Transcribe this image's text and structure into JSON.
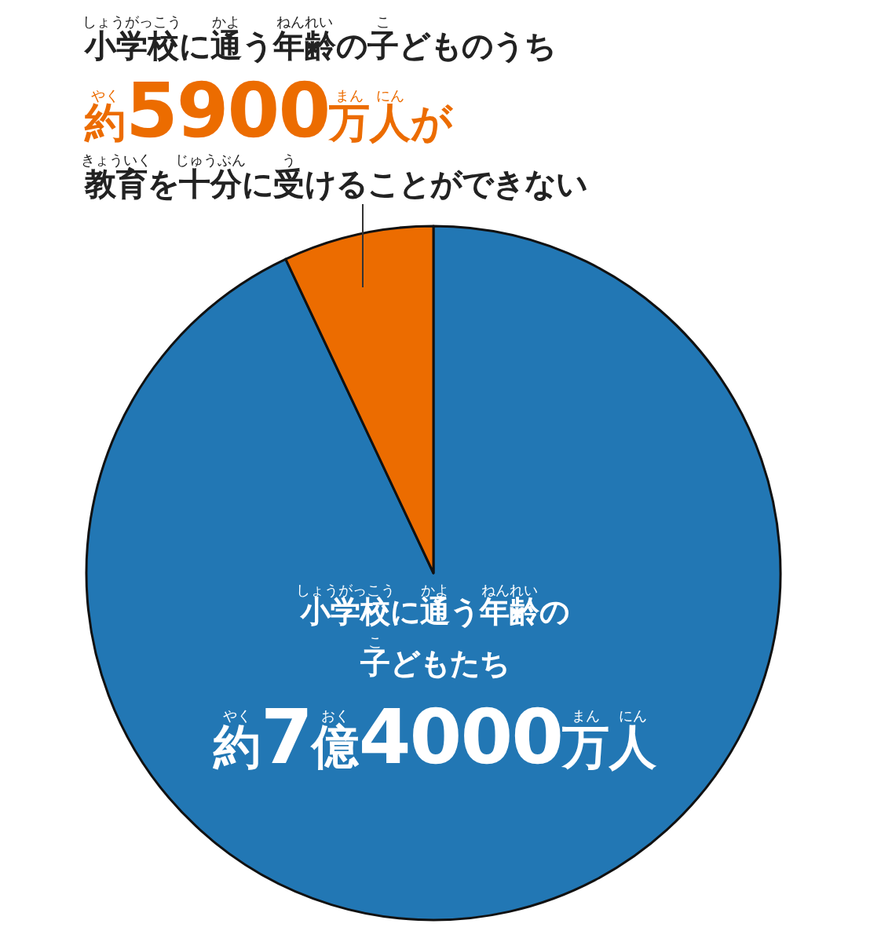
{
  "chart_data": {
    "type": "pie",
    "title": "小学校に通う年齢の子どものうち",
    "subtitle": "教育を十分に受けることができない",
    "categories": [
      "小学校に通う年齢の子どもたち",
      null
    ],
    "values": [
      93,
      7
    ],
    "colors": [
      "#2277b4",
      "#ec6c00"
    ],
    "value_labels": [
      "約7億4000万人",
      "約5900万人が"
    ],
    "annotations": [
      "しょうがっこう",
      "かよ",
      "ねんれい",
      "こ",
      "やく",
      "まん",
      "にん",
      "きょういく",
      "じゅうぶん",
      "う",
      "しょうがっこう",
      "かよ",
      "ねんれい",
      "こ",
      "やく",
      "おく",
      "まん",
      "にん"
    ]
  }
}
